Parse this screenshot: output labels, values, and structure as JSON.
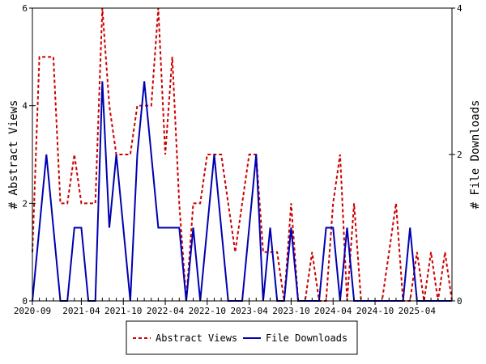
{
  "chart_data": {
    "type": "line",
    "xlabel": "",
    "ylabel_left": "# Abstract Views",
    "ylabel_right": "# File Downloads",
    "ylim_left": [
      0,
      6
    ],
    "ylim_right": [
      0,
      4
    ],
    "yticks_left": [
      "0",
      "2",
      "4",
      "6"
    ],
    "yticks_right": [
      "0",
      "2",
      "4"
    ],
    "x_tick_labels": [
      "2020-09",
      "2021-04",
      "2021-10",
      "2022-04",
      "2022-10",
      "2023-04",
      "2023-10",
      "2024-04",
      "2024-10",
      "2025-04"
    ],
    "x": [
      "2020-09",
      "2020-10",
      "2020-11",
      "2020-12",
      "2021-01",
      "2021-02",
      "2021-03",
      "2021-04",
      "2021-05",
      "2021-06",
      "2021-07",
      "2021-08",
      "2021-09",
      "2021-10",
      "2021-11",
      "2021-12",
      "2022-01",
      "2022-02",
      "2022-03",
      "2022-04",
      "2022-05",
      "2022-06",
      "2022-07",
      "2022-08",
      "2022-09",
      "2022-10",
      "2022-11",
      "2022-12",
      "2023-01",
      "2023-02",
      "2023-03",
      "2023-04",
      "2023-05",
      "2023-06",
      "2023-07",
      "2023-08",
      "2023-09",
      "2023-10",
      "2023-11",
      "2023-12",
      "2024-01",
      "2024-02",
      "2024-03",
      "2024-04",
      "2024-05",
      "2024-06",
      "2024-07",
      "2024-08",
      "2024-09",
      "2024-10",
      "2024-11",
      "2024-12",
      "2025-01",
      "2025-02",
      "2025-03",
      "2025-04",
      "2025-05",
      "2025-06",
      "2025-07",
      "2025-08",
      "2025-09"
    ],
    "series": [
      {
        "name": "Abstract Views",
        "axis": "left",
        "color": "#cc0000",
        "dash": "dashed",
        "values": [
          1,
          5,
          5,
          5,
          2,
          2,
          3,
          2,
          2,
          2,
          6,
          4,
          3,
          3,
          3,
          4,
          4,
          4,
          6,
          3,
          5,
          2,
          0,
          2,
          2,
          3,
          3,
          3,
          2,
          1,
          2,
          3,
          3,
          1,
          1,
          1,
          0,
          2,
          0,
          0,
          1,
          0,
          0,
          2,
          3,
          0,
          2,
          0,
          0,
          0,
          0,
          1,
          2,
          0,
          0,
          1,
          0,
          1,
          0,
          1,
          0
        ]
      },
      {
        "name": "File Downloads",
        "axis": "right",
        "color": "#0000b0",
        "dash": "solid",
        "values": [
          0,
          1,
          2,
          1,
          0,
          0,
          1,
          1,
          0,
          0,
          3,
          1,
          2,
          1,
          0,
          2,
          3,
          2,
          1,
          1,
          1,
          1,
          0,
          1,
          0,
          1,
          2,
          1,
          0,
          0,
          0,
          1,
          2,
          0,
          1,
          0,
          0,
          1,
          0,
          0,
          0,
          0,
          1,
          1,
          0,
          1,
          0,
          0,
          0,
          0,
          0,
          0,
          0,
          0,
          1,
          0,
          0,
          0,
          0,
          0,
          0
        ]
      }
    ],
    "legend_position": "bottom-center"
  }
}
